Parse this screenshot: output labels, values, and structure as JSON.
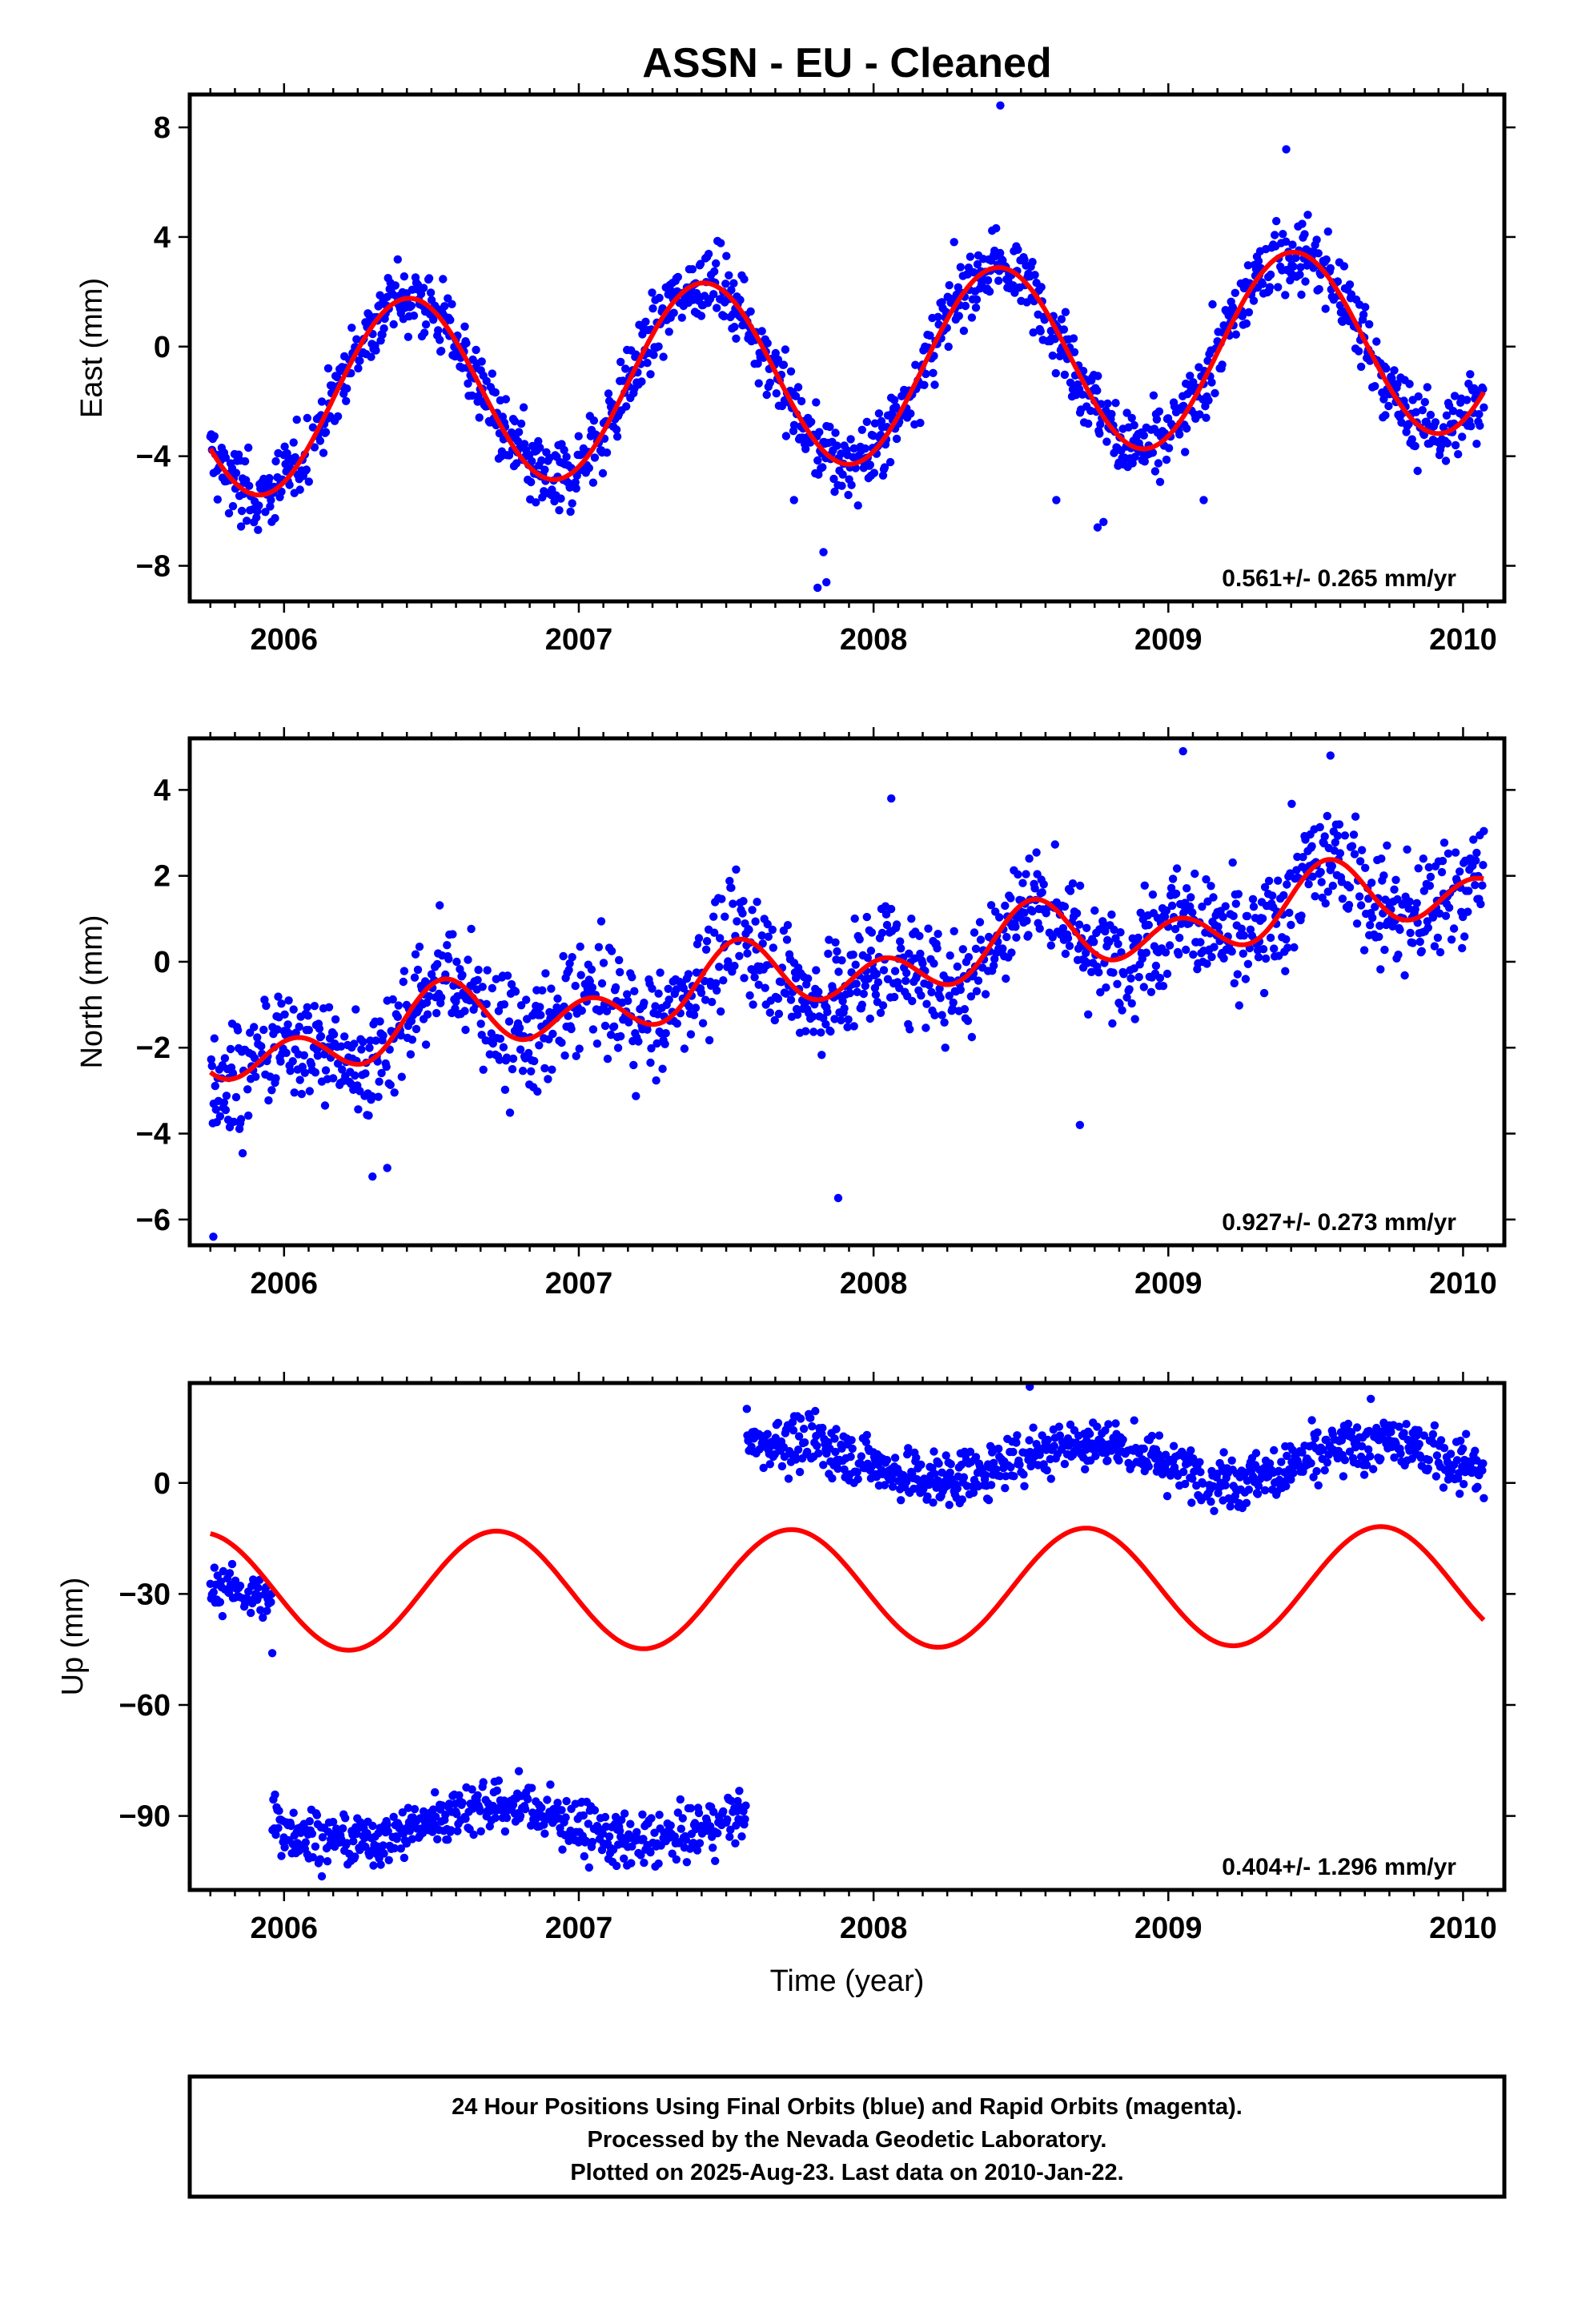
{
  "title": "ASSN  - EU - Cleaned",
  "xlabel": "Time (year)",
  "colors": {
    "points": "#0000ff",
    "fit": "#ff0000",
    "frame": "#000000"
  },
  "footer": [
    "24 Hour Positions Using Final Orbits (blue) and Rapid Orbits (magenta).",
    "Processed by the Nevada Geodetic Laboratory.",
    "Plotted on 2025-Aug-23. Last data on 2010-Jan-22."
  ],
  "chart_data": [
    {
      "type": "scatter",
      "ylabel": "East (mm)",
      "rate_label": "0.561+/- 0.265 mm/yr",
      "xlim": [
        2005.68,
        2010.14
      ],
      "ylim": [
        -9.3,
        9.2
      ],
      "xticks": [
        2006,
        2007,
        2008,
        2009,
        2010
      ],
      "yticks": [
        -8,
        -4,
        0,
        4,
        8
      ],
      "data_range": [
        2005.75,
        2010.07
      ],
      "fit": {
        "trend": 0.561,
        "offset": -0.8,
        "epoch": 2008.0,
        "amp": 3.45,
        "phase_peak": 0.42,
        "semi_amp": 0.0,
        "semi_peak": 0.0
      },
      "breaks": [],
      "scatter_sd": 0.9,
      "outliers": [
        [
          2007.81,
          -8.8
        ],
        [
          2007.84,
          -8.6
        ],
        [
          2007.83,
          -7.5
        ],
        [
          2008.43,
          8.8
        ],
        [
          2009.4,
          7.2
        ],
        [
          2008.76,
          -6.6
        ],
        [
          2008.78,
          -6.4
        ],
        [
          2008.62,
          -5.6
        ],
        [
          2007.73,
          -5.6
        ],
        [
          2009.12,
          -5.6
        ]
      ]
    },
    {
      "type": "scatter",
      "ylabel": "North (mm)",
      "rate_label": "0.927+/- 0.273 mm/yr",
      "xlim": [
        2005.68,
        2010.14
      ],
      "ylim": [
        -6.6,
        5.2
      ],
      "xticks": [
        2006,
        2007,
        2008,
        2009,
        2010
      ],
      "yticks": [
        -6,
        -4,
        -2,
        0,
        2,
        4
      ],
      "data_range": [
        2005.75,
        2010.07
      ],
      "fit": {
        "trend": 0.927,
        "offset": -0.1,
        "epoch": 2008.0,
        "amp": 0.45,
        "phase_peak": 0.55,
        "semi_amp": 0.6,
        "semi_peak": 0.04
      },
      "breaks": [],
      "scatter_sd": 0.9,
      "outliers": [
        [
          2005.76,
          -6.4
        ],
        [
          2007.88,
          -5.5
        ],
        [
          2008.7,
          -3.8
        ],
        [
          2006.3,
          -5.0
        ],
        [
          2006.35,
          -4.8
        ],
        [
          2009.05,
          4.9
        ],
        [
          2009.55,
          4.8
        ],
        [
          2008.06,
          3.8
        ]
      ]
    },
    {
      "type": "scatter",
      "ylabel": "Up (mm)",
      "rate_label": "0.404+/- 1.296 mm/yr",
      "xlim": [
        2005.68,
        2010.14
      ],
      "ylim": [
        -110,
        27
      ],
      "xticks": [
        2006,
        2007,
        2008,
        2009,
        2010
      ],
      "yticks": [
        -90,
        -60,
        -30,
        0
      ],
      "data_range": [
        2005.75,
        2010.07
      ],
      "fit": {
        "trend": 0.404,
        "offset": -28.5,
        "epoch": 2008.0,
        "amp": 16.0,
        "phase_peak": 0.72,
        "semi_amp": 0.0,
        "semi_peak": 0.0
      },
      "breaks": [
        {
          "from": 2005.75,
          "to": 2005.96,
          "offset": -33,
          "sd": 4
        },
        {
          "from": 2005.96,
          "to": 2007.57,
          "offset": -92,
          "sd": 5
        },
        {
          "from": 2007.57,
          "to": 2010.07,
          "offset": 6,
          "sd": 5
        }
      ],
      "scatter_sd": 5,
      "outliers": [
        [
          2007.57,
          20
        ],
        [
          2008.53,
          26
        ],
        [
          2005.96,
          -46
        ]
      ]
    }
  ]
}
